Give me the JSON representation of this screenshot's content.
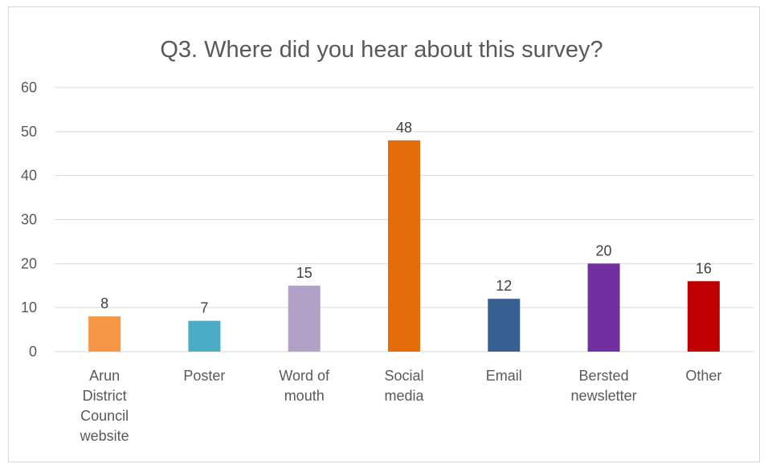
{
  "chart_data": {
    "type": "bar",
    "title": "Q3. Where did you hear about this survey?",
    "categories": [
      [
        "Arun",
        "District",
        "Council",
        "website"
      ],
      [
        "Poster"
      ],
      [
        "Word of",
        "mouth"
      ],
      [
        "Social",
        "media"
      ],
      [
        "Email"
      ],
      [
        "Bersted",
        "newsletter"
      ],
      [
        "Other"
      ]
    ],
    "values": [
      8,
      7,
      15,
      48,
      12,
      20,
      16
    ],
    "colors": [
      "#f79646",
      "#4bacc6",
      "#b2a1c7",
      "#e46c0a",
      "#376092",
      "#7030a0",
      "#c00000"
    ],
    "ylim": [
      0,
      60
    ],
    "yticks": [
      0,
      10,
      20,
      30,
      40,
      50,
      60
    ],
    "grid": true,
    "legend": "none"
  }
}
